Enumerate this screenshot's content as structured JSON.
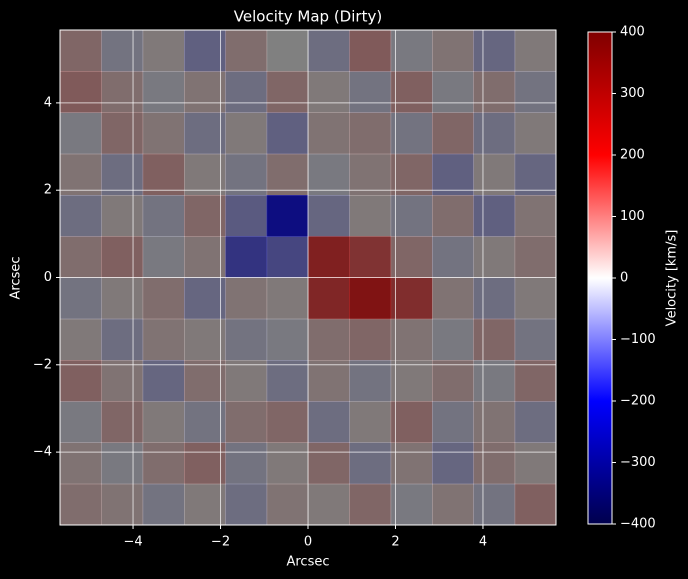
{
  "chart_data": {
    "type": "heatmap",
    "title": "Velocity Map (Dirty)",
    "xlabel": "Arcsec",
    "ylabel": "Arcsec",
    "colorbar_label": "Velocity [km/s]",
    "xlim": [
      -5.67,
      5.67
    ],
    "ylim": [
      -5.67,
      5.67
    ],
    "xticks": [
      {
        "value": -4,
        "label": "−4"
      },
      {
        "value": -2,
        "label": "−2"
      },
      0,
      2,
      4
    ],
    "yticks": [
      {
        "value": -4,
        "label": "−4"
      },
      {
        "value": -2,
        "label": "−2"
      },
      0,
      2,
      4
    ],
    "vlim": [
      -400,
      400
    ],
    "cticks": [
      {
        "value": -400,
        "label": "−400"
      },
      {
        "value": -300,
        "label": "−300"
      },
      {
        "value": -200,
        "label": "−200"
      },
      {
        "value": -100,
        "label": "−100"
      },
      0,
      100,
      200,
      300,
      400
    ],
    "colormap": [
      "#00004d",
      "#0000ff",
      "#ffffff",
      "#ff0000",
      "#800000"
    ],
    "alpha": 0.5,
    "grid": true,
    "z": [
      [
        40,
        -20,
        10,
        -50,
        30,
        0,
        -30,
        60,
        -10,
        20,
        -40,
        10
      ],
      [
        60,
        30,
        -10,
        20,
        -30,
        40,
        10,
        -20,
        50,
        -10,
        30,
        -20
      ],
      [
        -10,
        40,
        20,
        -30,
        10,
        -50,
        20,
        30,
        -20,
        40,
        -30,
        10
      ],
      [
        20,
        -30,
        50,
        10,
        -20,
        30,
        -10,
        20,
        40,
        -50,
        10,
        -40
      ],
      [
        -30,
        10,
        -20,
        40,
        -60,
        -180,
        -40,
        10,
        -20,
        30,
        -50,
        20
      ],
      [
        30,
        50,
        -10,
        20,
        -120,
        -90,
        150,
        120,
        40,
        -20,
        10,
        30
      ],
      [
        -20,
        10,
        30,
        -40,
        20,
        10,
        140,
        170,
        130,
        20,
        -30,
        10
      ],
      [
        10,
        -30,
        20,
        10,
        -20,
        -10,
        30,
        40,
        20,
        -10,
        40,
        -20
      ],
      [
        50,
        20,
        -40,
        30,
        10,
        -30,
        20,
        -20,
        10,
        30,
        -10,
        40
      ],
      [
        -10,
        40,
        10,
        -20,
        30,
        40,
        -30,
        10,
        50,
        -20,
        20,
        -30
      ],
      [
        20,
        -10,
        30,
        50,
        -20,
        10,
        40,
        -30,
        20,
        -40,
        30,
        10
      ],
      [
        30,
        20,
        -20,
        10,
        -30,
        20,
        10,
        40,
        -10,
        20,
        -20,
        50
      ]
    ]
  }
}
